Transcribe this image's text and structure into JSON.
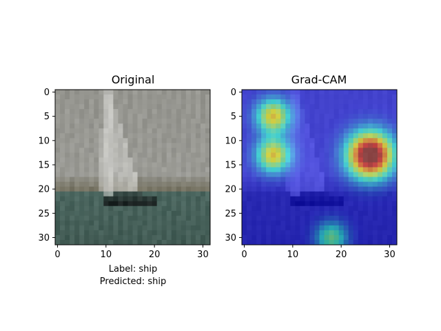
{
  "chart_data": [
    {
      "type": "image",
      "title": "Original",
      "xlim": [
        -0.5,
        31.5
      ],
      "ylim": [
        31.5,
        -0.5
      ],
      "xticks": [
        0,
        10,
        20,
        30
      ],
      "yticks": [
        0,
        5,
        10,
        15,
        20,
        25,
        30
      ],
      "xlabel": "Label: ship\nPredicted: ship",
      "label_text": "Label: ship",
      "predicted_text": "Predicted: ship",
      "image_description_colors": {
        "sky": "#9a9a94",
        "water": "#4f6a63",
        "shore": "#7d7a6a",
        "sail": "#d4d4d0",
        "hull": "#1a1f1f"
      }
    },
    {
      "type": "heatmap_overlay",
      "title": "Grad-CAM",
      "xlim": [
        -0.5,
        31.5
      ],
      "ylim": [
        31.5,
        -0.5
      ],
      "xticks": [
        0,
        10,
        20,
        30
      ],
      "yticks": [
        0,
        5,
        10,
        15,
        20,
        25,
        30
      ],
      "colormap": "jet",
      "hotspots": [
        {
          "x": 6,
          "y": 5,
          "intensity": 0.55,
          "radius": 2.4
        },
        {
          "x": 6,
          "y": 13,
          "intensity": 0.55,
          "radius": 2.4
        },
        {
          "x": 26,
          "y": 13,
          "intensity": 1.0,
          "radius": 3.2
        },
        {
          "x": 18,
          "y": 30,
          "intensity": 0.35,
          "radius": 2.2
        }
      ],
      "background_level": 0.12
    }
  ]
}
